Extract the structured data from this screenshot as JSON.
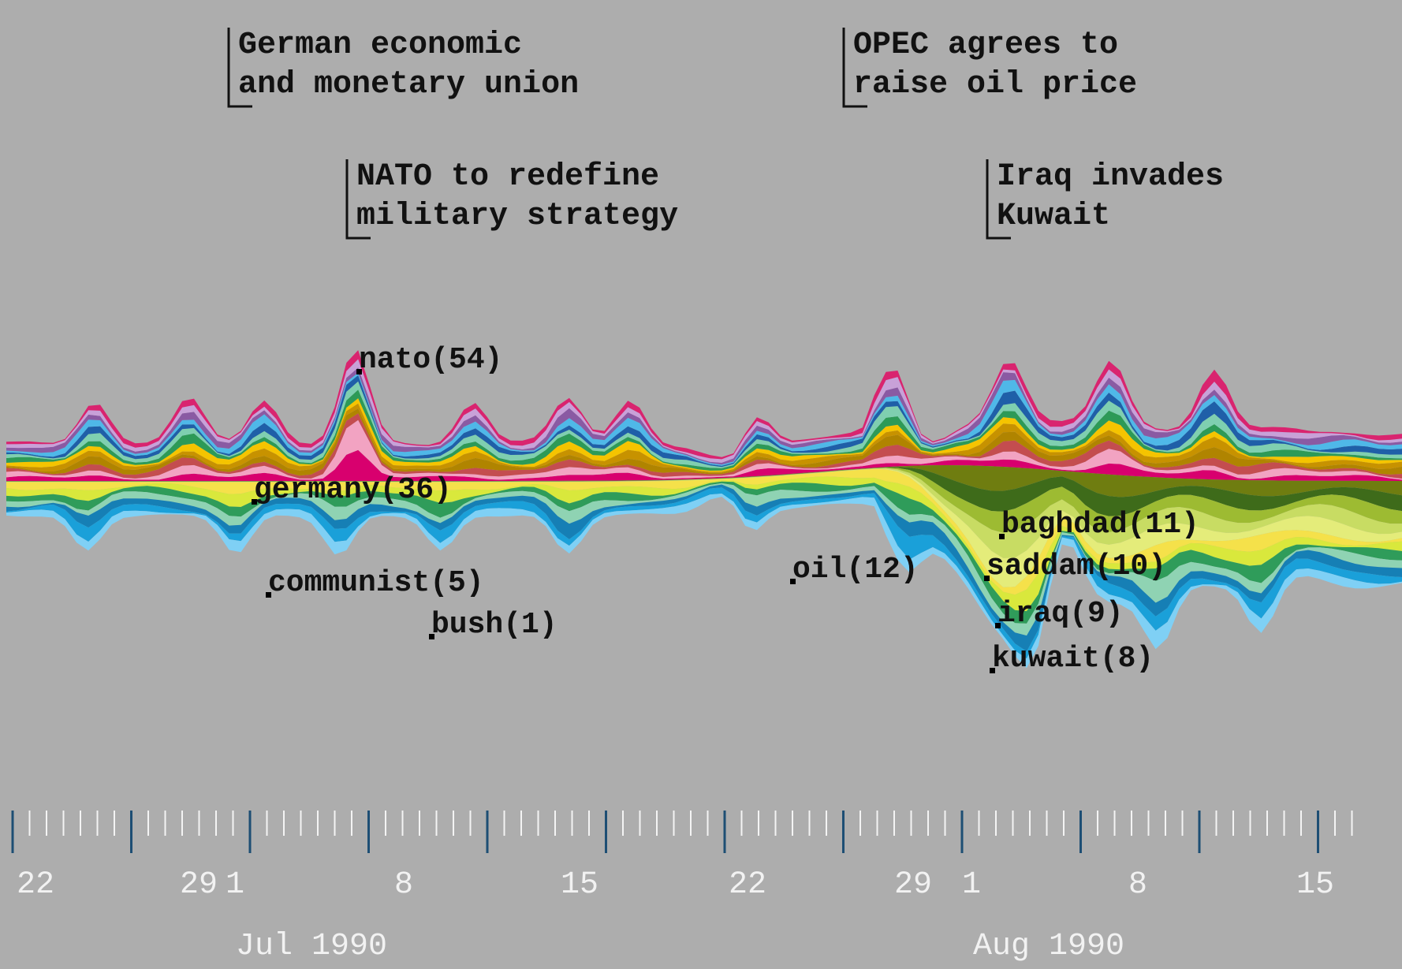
{
  "chart_data": {
    "type": "area",
    "subtype": "streamgraph",
    "x_axis": {
      "days": [
        {
          "label": "22"
        },
        {
          "label": "29"
        },
        {
          "label": "1"
        },
        {
          "label": "8"
        },
        {
          "label": "15"
        },
        {
          "label": "22"
        },
        {
          "label": "29"
        },
        {
          "label": "1"
        },
        {
          "label": "8"
        },
        {
          "label": "15"
        }
      ],
      "months": [
        {
          "label": "Jul 1990"
        },
        {
          "label": "Aug 1990"
        }
      ]
    },
    "events": [
      {
        "line1": "German economic",
        "line2": "and monetary union"
      },
      {
        "line1": "NATO to redefine",
        "line2": "military strategy"
      },
      {
        "line1": "OPEC agrees to",
        "line2": "raise oil price"
      },
      {
        "line1": "Iraq invades",
        "line2": "Kuwait"
      }
    ],
    "term_labels": [
      {
        "term": "nato",
        "rank": 54,
        "text": "nato(54)"
      },
      {
        "term": "germany",
        "rank": 36,
        "text": "germany(36)"
      },
      {
        "term": "communist",
        "rank": 5,
        "text": "communist(5)"
      },
      {
        "term": "bush",
        "rank": 1,
        "text": "bush(1)"
      },
      {
        "term": "oil",
        "rank": 12,
        "text": "oil(12)"
      },
      {
        "term": "baghdad",
        "rank": 11,
        "text": "baghdad(11)"
      },
      {
        "term": "saddam",
        "rank": 10,
        "text": "saddam(10)"
      },
      {
        "term": "iraq",
        "rank": 9,
        "text": "iraq(9)"
      },
      {
        "term": "kuwait",
        "rank": 8,
        "text": "kuwait(8)"
      }
    ],
    "legend": "none",
    "grid": false,
    "background_color": "#adadad",
    "layers_top": [
      {
        "color": "#d8006e"
      },
      {
        "color": "#f2a3c2"
      },
      {
        "color": "#c44d4f"
      },
      {
        "color": "#b08400"
      },
      {
        "color": "#c79200"
      },
      {
        "color": "#f5c400"
      },
      {
        "color": "#2d9a57"
      },
      {
        "color": "#7fcfb0"
      },
      {
        "color": "#1f5fa8"
      },
      {
        "color": "#4fb8e8"
      },
      {
        "color": "#8a5aa3"
      },
      {
        "color": "#c8a1d8"
      },
      {
        "color": "#d9246f"
      }
    ],
    "layers_bottom": [
      {
        "color": "#f5e14a"
      },
      {
        "color": "#d9e83c"
      },
      {
        "color": "#2f9c5a"
      },
      {
        "color": "#8fd3b3"
      },
      {
        "color": "#167fb5"
      },
      {
        "color": "#1aa0d9"
      },
      {
        "color": "#7fd0f5"
      }
    ],
    "iraq_layers": [
      {
        "color": "#6f7d10"
      },
      {
        "color": "#3e6b1a"
      },
      {
        "color": "#9dbb32"
      },
      {
        "color": "#c8dc63"
      },
      {
        "color": "#e4ec7a"
      }
    ]
  }
}
